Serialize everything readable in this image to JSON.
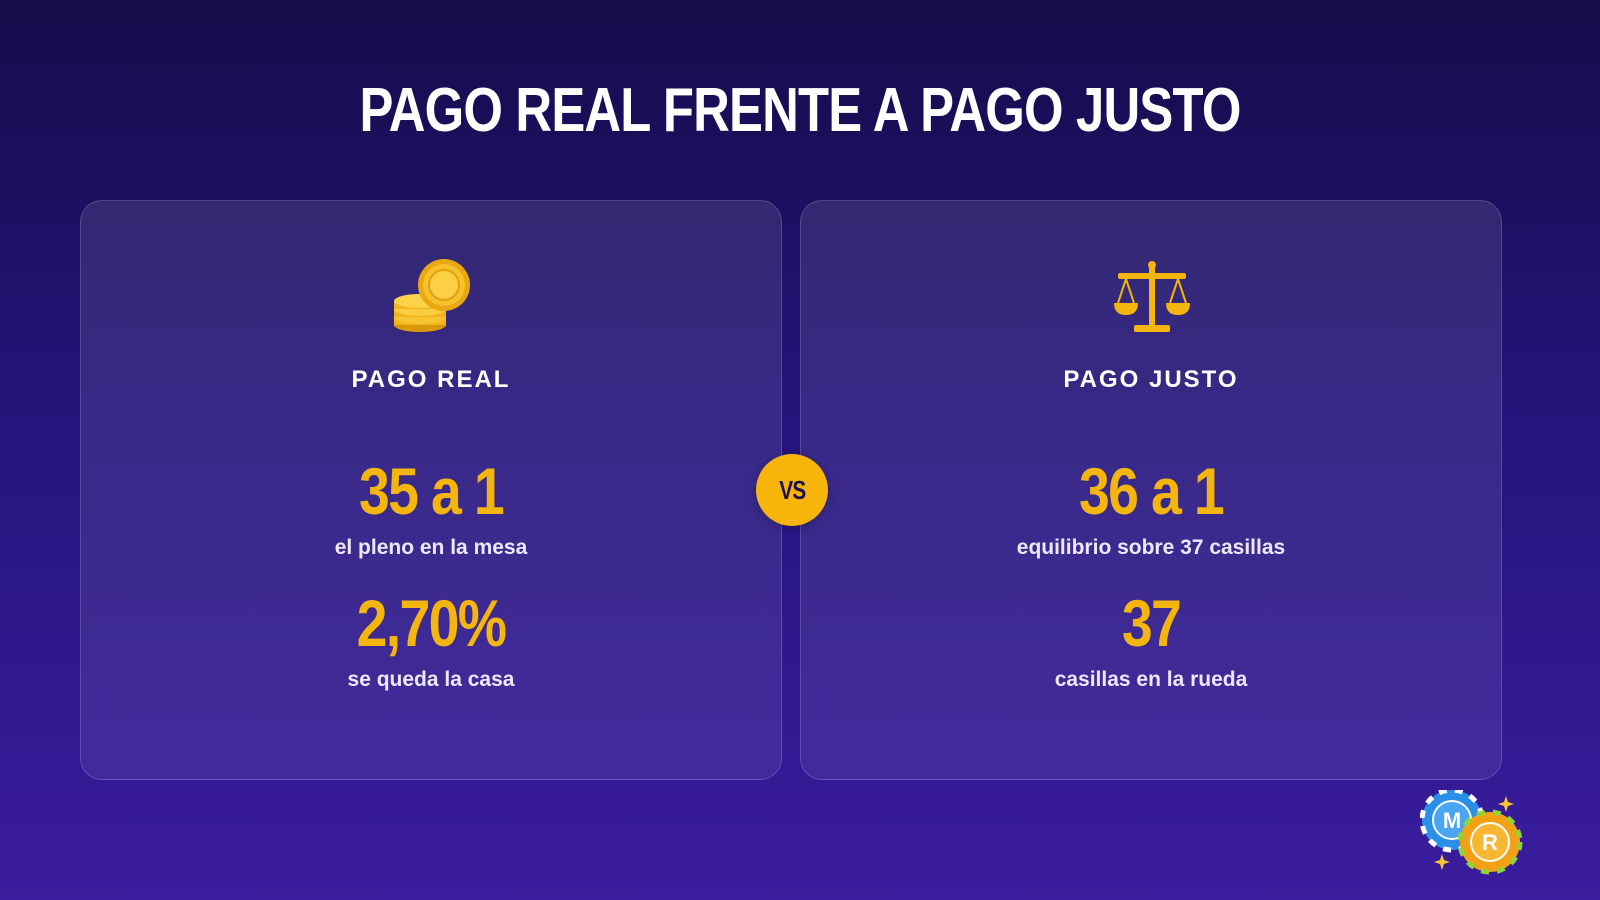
{
  "title": "PAGO REAL FRENTE A PAGO JUSTO",
  "vs_label": "VS",
  "cards": [
    {
      "icon": "coin-stack-icon",
      "heading": "PAGO REAL",
      "stats": [
        {
          "value": "35 a 1",
          "label": "el pleno en la mesa"
        },
        {
          "value": "2,70%",
          "label": "se queda la casa"
        }
      ]
    },
    {
      "icon": "balance-scale-icon",
      "heading": "PAGO JUSTO",
      "stats": [
        {
          "value": "36 a 1",
          "label": "equilibrio sobre 37 casillas"
        },
        {
          "value": "37",
          "label": "casillas en la rueda"
        }
      ]
    }
  ],
  "logo": {
    "icon": "casino-chips-logo",
    "letters": [
      "M",
      "R"
    ]
  },
  "colors": {
    "accent": "#f5b50f",
    "background_top": "#150c4a",
    "background_bottom": "#3a1c9e",
    "text": "#ffffff"
  }
}
